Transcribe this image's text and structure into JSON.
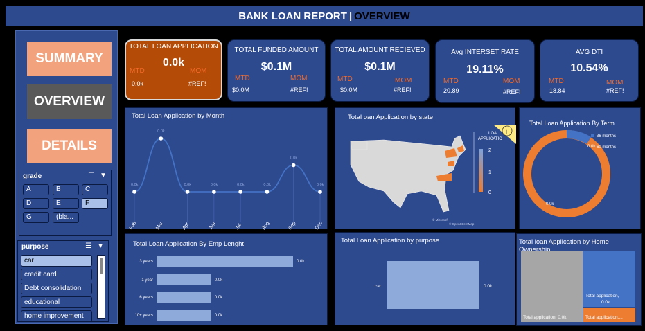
{
  "header": {
    "title": "BANK LOAN REPORT",
    "separator": "|",
    "subtitle": "OVERVIEW"
  },
  "nav": {
    "summary": "SUMMARY",
    "overview": "OVERVIEW",
    "details": "DETAILS"
  },
  "grade_slicer": {
    "title": "grade",
    "options": [
      "A",
      "B",
      "C",
      "D",
      "E",
      "F",
      "G",
      "(bla..."
    ],
    "selected": "F"
  },
  "purpose_slicer": {
    "title": "purpose",
    "options": [
      "car",
      "credit card",
      "Debt consolidation",
      "educational",
      "home improvement"
    ],
    "selected": "car"
  },
  "kpis": {
    "total_loan_application": {
      "title": "TOTAL LOAN APPLICATION",
      "value": "0.0k",
      "mtd_label": "MTD",
      "mom_label": "MOM",
      "mtd": "0.0k",
      "mom": "#REF!"
    },
    "total_funded_amount": {
      "title": "TOTAL FUNDED AMOUNT",
      "value": "$0.1M",
      "mtd_label": "MTD",
      "mom_label": "MOM",
      "mtd": "$0.0M",
      "mom": "#REF!"
    },
    "total_amount_received": {
      "title": "TOTAL AMOUNT RECIEVED",
      "value": "$0.1M",
      "mtd_label": "MTD",
      "mom_label": "MOM",
      "mtd": "$0.0M",
      "mom": "#REF!"
    },
    "avg_interest_rate": {
      "title": "Avg INTERSET RATE",
      "value": "19.11%",
      "mtd_label": "MTD",
      "mom_label": "MOM",
      "mtd": "20.89",
      "mom": "#REF!"
    },
    "avg_dti": {
      "title": "AVG DTI",
      "value": "10.54%",
      "mtd_label": "MTD",
      "mom_label": "MOM",
      "mtd": "18.84",
      "mom": "#REF!"
    }
  },
  "chart_data": [
    {
      "type": "line",
      "title": "Total Loan Application by Month",
      "categories": [
        "Feb",
        "Mar",
        "Apr",
        "Jun",
        "Jul",
        "Aug",
        "Sep",
        "Dec"
      ],
      "values": [
        0,
        2,
        0,
        0,
        0,
        0,
        1,
        0
      ],
      "labels": [
        "0.0k",
        "0.0k",
        "0.0k",
        "0.0k",
        "0.0k",
        "0.0k",
        "0.0k",
        "0.0k"
      ]
    },
    {
      "type": "map",
      "title": "Total oan Application by state",
      "legend_title": [
        "LOA",
        "APPLICATIO"
      ],
      "legend_ticks": [
        "2",
        "1",
        "0"
      ],
      "attribution": [
        "© Microsoft",
        "© OpenStreetMap"
      ]
    },
    {
      "type": "pie",
      "title": "Total Loan Application By Term",
      "series": [
        {
          "name": "36 months",
          "value": 0.1,
          "color": "#4472c4"
        },
        {
          "name": "60 months",
          "value": 0.9,
          "color": "#ed7d31"
        }
      ],
      "data_labels": [
        "0.0k",
        "0.0k"
      ]
    },
    {
      "type": "bar",
      "title": "Total Loan Application By Emp Lenght",
      "categories": [
        "3 years",
        "1 year",
        "6 years",
        "10+ years"
      ],
      "values": [
        1,
        0.4,
        0.4,
        0.4
      ],
      "labels": [
        "0.0k",
        "0.0k",
        "0.0k",
        "0.0k"
      ]
    },
    {
      "type": "bar",
      "title": "Total Loan Application  by purpose",
      "categories": [
        "car"
      ],
      "values": [
        1
      ],
      "labels": [
        "0.0k"
      ]
    },
    {
      "type": "treemap",
      "title": "Total loan Application by Home Ownership",
      "cells": [
        {
          "label": "Total application, 0.0k",
          "color": "#a6a6a6"
        },
        {
          "label": "Total application,",
          "value_label": "0.0k",
          "color": "#4472c4"
        },
        {
          "label": "Total application,...",
          "color": "#ed7d31"
        }
      ]
    }
  ],
  "colors": {
    "header": "#2e4a8f",
    "panel": "#2e4a8f",
    "orange": "#ed7d31",
    "accent_orange": "#b44c08",
    "nav_peach": "#f2a27c",
    "nav_gray": "#595959"
  }
}
